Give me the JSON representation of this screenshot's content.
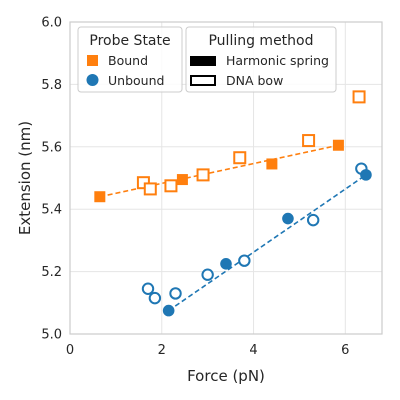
{
  "chart_data": {
    "type": "scatter",
    "xlabel": "Force (pN)",
    "ylabel": "Extension (nm)",
    "xlim": [
      0,
      6.8
    ],
    "ylim": [
      5.0,
      6.0
    ],
    "xticks": [
      "0",
      "2",
      "4",
      "6"
    ],
    "yticks": [
      "5.0",
      "5.2",
      "5.4",
      "5.6",
      "5.8",
      "6.0"
    ],
    "grid": true,
    "legend_placement": "top-left",
    "legends": {
      "probe_state": {
        "title": "Probe State",
        "entries": [
          {
            "label": "Bound",
            "marker": "square",
            "color": "#ff7f0e"
          },
          {
            "label": "Unbound",
            "marker": "circle",
            "color": "#1f77b4"
          }
        ]
      },
      "pulling_method": {
        "title": "Pulling method",
        "entries": [
          {
            "label": "Harmonic spring",
            "fill": "filled"
          },
          {
            "label": "DNA bow",
            "fill": "open"
          }
        ]
      }
    },
    "series": [
      {
        "state": "Bound",
        "method": "Harmonic spring",
        "marker": "square",
        "fill": "filled",
        "color": "#ff7f0e",
        "points": [
          [
            0.65,
            5.44
          ],
          [
            2.45,
            5.495
          ],
          [
            4.4,
            5.545
          ],
          [
            5.85,
            5.605
          ]
        ]
      },
      {
        "state": "Bound",
        "method": "DNA bow",
        "marker": "square",
        "fill": "open",
        "color": "#ff7f0e",
        "points": [
          [
            1.6,
            5.485
          ],
          [
            1.75,
            5.465
          ],
          [
            2.2,
            5.475
          ],
          [
            2.9,
            5.51
          ],
          [
            3.7,
            5.565
          ],
          [
            5.2,
            5.62
          ],
          [
            6.3,
            5.76
          ]
        ]
      },
      {
        "state": "Unbound",
        "method": "Harmonic spring",
        "marker": "circle",
        "fill": "filled",
        "color": "#1f77b4",
        "points": [
          [
            2.15,
            5.075
          ],
          [
            3.4,
            5.225
          ],
          [
            4.75,
            5.37
          ],
          [
            6.45,
            5.51
          ]
        ]
      },
      {
        "state": "Unbound",
        "method": "DNA bow",
        "marker": "circle",
        "fill": "open",
        "color": "#1f77b4",
        "points": [
          [
            1.7,
            5.145
          ],
          [
            1.85,
            5.115
          ],
          [
            2.3,
            5.13
          ],
          [
            3.0,
            5.19
          ],
          [
            3.8,
            5.235
          ],
          [
            5.3,
            5.365
          ],
          [
            6.35,
            5.53
          ]
        ]
      }
    ],
    "fit_lines": [
      {
        "state": "Bound",
        "color": "#ff7f0e",
        "style": "dashed",
        "points": [
          [
            0.65,
            5.44
          ],
          [
            5.85,
            5.605
          ]
        ]
      },
      {
        "state": "Unbound",
        "color": "#1f77b4",
        "style": "dashed",
        "points": [
          [
            2.15,
            5.075
          ],
          [
            6.45,
            5.51
          ]
        ]
      }
    ]
  }
}
